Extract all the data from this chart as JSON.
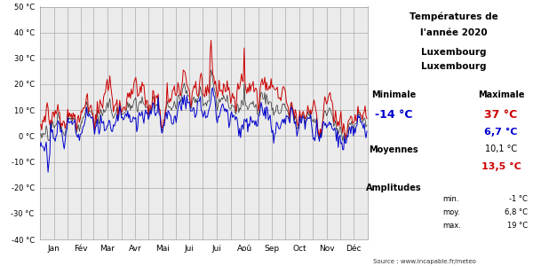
{
  "title_line1": "Températures de",
  "title_line2": "l'année 2020",
  "location_line1": "Luxembourg",
  "location_line2": "Luxembourg",
  "min_label": "Minimale",
  "max_label": "Maximale",
  "min_value_blue": "-14 °C",
  "max_value_red": "37 °C",
  "avg_blue": "6,7 °C",
  "moyennes_label": "Moyennes",
  "avg_black": "10,1 °C",
  "avg_red": "13,5 °C",
  "amplitudes_label": "Amplitudes",
  "amp_min": "-1 °C",
  "amp_moy": "6,8 °C",
  "amp_max": "19 °C",
  "source": "Source : www.incapable.fr/meteo",
  "ylim": [
    -40,
    50
  ],
  "yticks": [
    -40,
    -30,
    -20,
    -10,
    0,
    10,
    20,
    30,
    40,
    50
  ],
  "months": [
    "Jan",
    "Fév",
    "Mar",
    "Avr",
    "Mai",
    "Jui",
    "Jui",
    "Aoû",
    "Sep",
    "Oct",
    "Nov",
    "Déc"
  ],
  "plot_bg": "#ebebeb",
  "grid_color": "#aaaaaa",
  "line_color_min": "#0000cc",
  "line_color_max": "#cc0000",
  "line_color_mean": "#000000"
}
